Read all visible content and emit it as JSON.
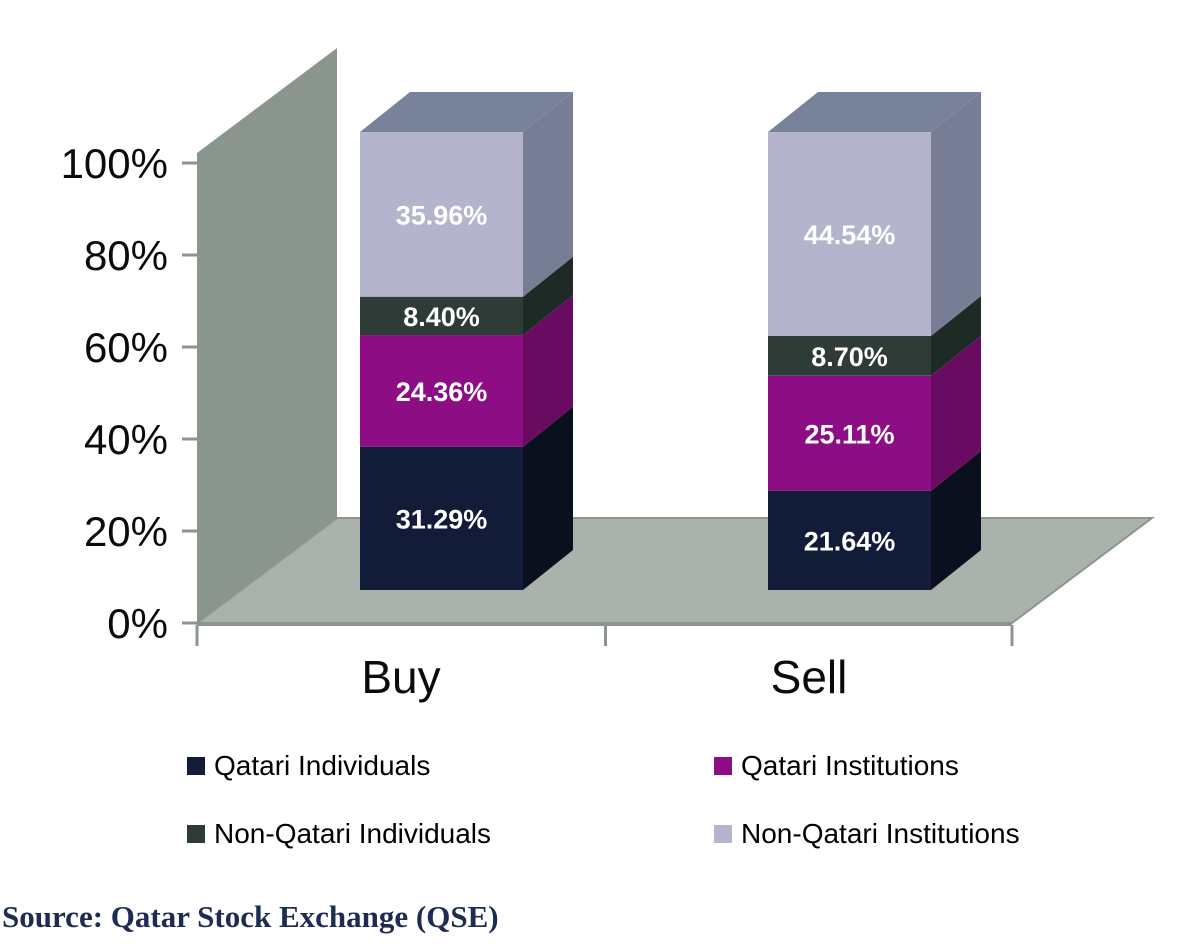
{
  "chart_data": {
    "type": "bar",
    "variant": "3d-stacked-column",
    "title": "",
    "categories": [
      "Buy",
      "Sell"
    ],
    "series": [
      {
        "name": "Qatari Individuals",
        "values": [
          31.29,
          21.64
        ],
        "color": "#121B38",
        "side_color": "#0B101F"
      },
      {
        "name": "Qatari Institutions",
        "values": [
          24.36,
          25.11
        ],
        "color": "#8D0D84",
        "side_color": "#690B61"
      },
      {
        "name": "Non-Qatari Individuals",
        "values": [
          8.4,
          8.7
        ],
        "color": "#2E3B36",
        "side_color": "#1E2A26"
      },
      {
        "name": "Non-Qatari Institutions",
        "values": [
          35.96,
          44.54
        ],
        "color": "#B4B4CD",
        "side_color": "#767D95",
        "top_color": "#79829B"
      }
    ],
    "value_label_format": "0.00%",
    "value_labels": [
      [
        "31.29%",
        "21.64%"
      ],
      [
        "24.36%",
        "25.11%"
      ],
      [
        "8.40%",
        "8.70%"
      ],
      [
        "35.96%",
        "44.54%"
      ]
    ],
    "y_ticks": [
      "0%",
      "20%",
      "40%",
      "60%",
      "80%",
      "100%"
    ],
    "ylim": [
      0,
      100
    ],
    "grid": false,
    "legend_position": "bottom"
  },
  "colors": {
    "wall": "#8A958D",
    "floor": "#A9B2AB",
    "axis": "#8C968E",
    "value_label": "#FFFFFF",
    "tick_text": "#0B0B0B",
    "legend_text": "#000000",
    "source_text": "#1E2C52"
  },
  "source_note": "Source: Qatar Stock Exchange (QSE)"
}
